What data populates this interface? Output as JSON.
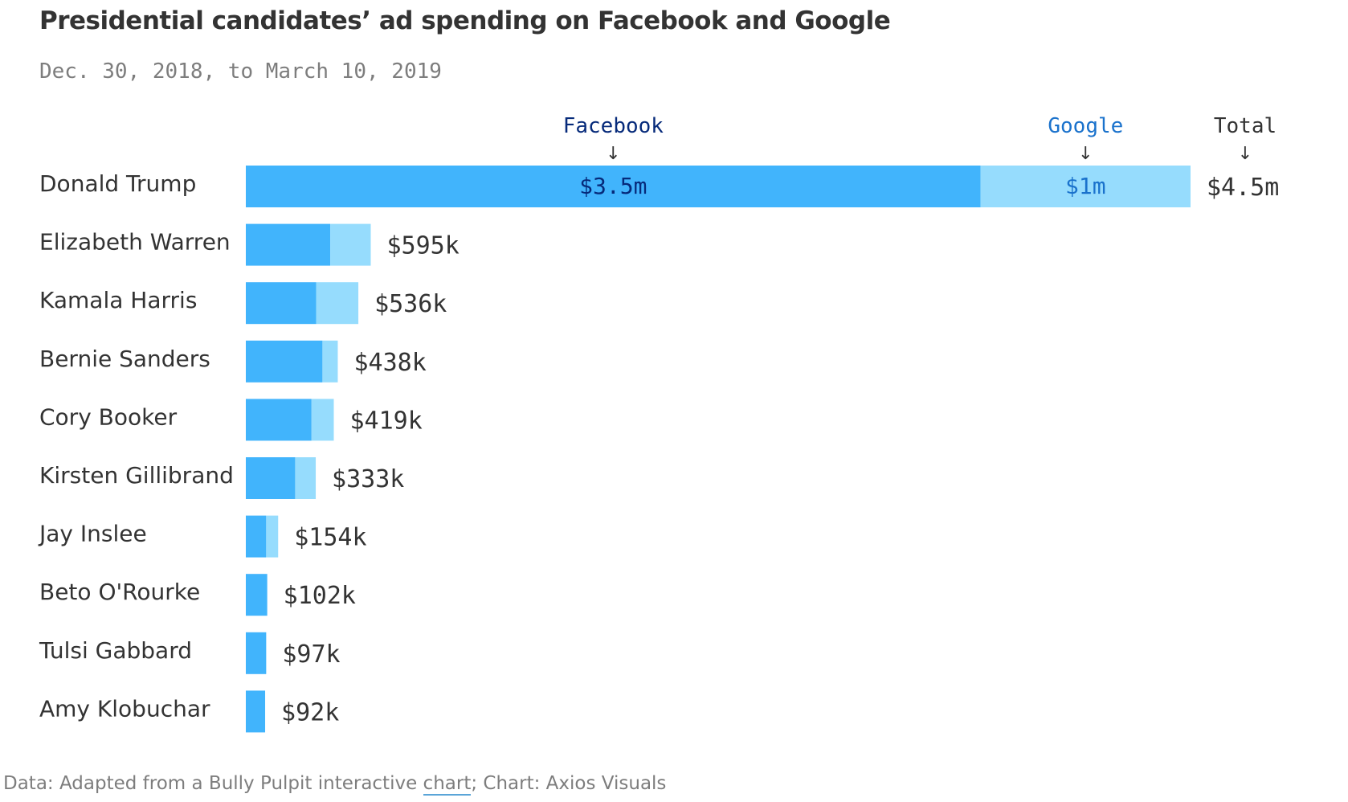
{
  "title": "Presidential candidates’ ad spending on Facebook and Google",
  "subtitle": "Dec. 30, 2018, to March 10, 2019",
  "colors": {
    "facebook": "#41b4fc",
    "google": "#96dcfd",
    "facebook_label": "#062a7a",
    "google_label": "#1a72cc",
    "text": "#333333",
    "muted": "#7d7d7d"
  },
  "legend": {
    "facebook": "Facebook",
    "google": "Google",
    "total": "Total",
    "arrow": "↓"
  },
  "chart_data": {
    "type": "bar",
    "orientation": "horizontal",
    "stacked": true,
    "units": "USD",
    "categories": [
      "Donald Trump",
      "Elizabeth Warren",
      "Kamala Harris",
      "Bernie Sanders",
      "Cory Booker",
      "Kirsten Gillibrand",
      "Jay Inslee",
      "Beto O'Rourke",
      "Tulsi Gabbard",
      "Amy Klobuchar"
    ],
    "series": [
      {
        "name": "Facebook",
        "values": [
          3500000,
          402000,
          335000,
          365000,
          313000,
          235000,
          97000,
          102000,
          97000,
          92000
        ]
      },
      {
        "name": "Google",
        "values": [
          1000000,
          193000,
          201000,
          73000,
          106000,
          98000,
          57000,
          0,
          0,
          0
        ]
      }
    ],
    "totals": [
      4500000,
      595000,
      536000,
      438000,
      419000,
      333000,
      154000,
      102000,
      97000,
      92000
    ],
    "total_labels": [
      "$4.5m",
      "$595k",
      "$536k",
      "$438k",
      "$419k",
      "$333k",
      "$154k",
      "$102k",
      "$97k",
      "$92k"
    ],
    "segment_labels": {
      "Donald Trump": {
        "Facebook": "$3.5m",
        "Google": "$1m"
      }
    },
    "xlim": [
      0,
      4500000
    ],
    "grid": false,
    "legend_placement": "top, above first bar"
  },
  "footer": {
    "prefix": "Data: Adapted from a Bully Pulpit interactive ",
    "link": "chart",
    "suffix": "; Chart: Axios Visuals"
  }
}
